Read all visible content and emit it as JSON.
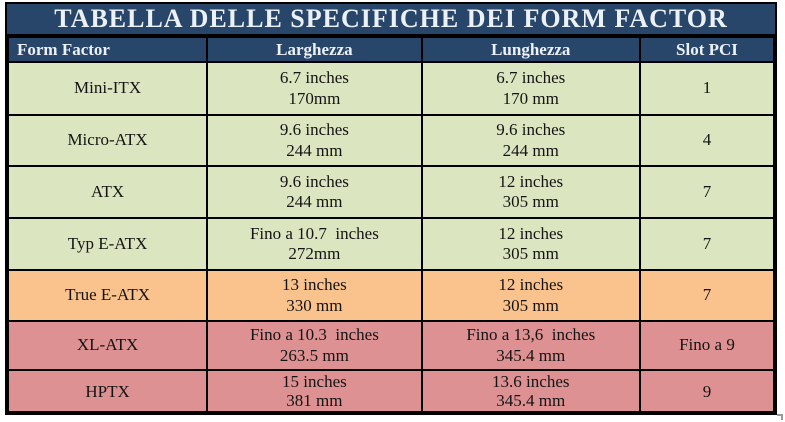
{
  "page": {
    "title_bar": "TABELLA DELLE SPECIFICHE DEI FORM FACTOR"
  },
  "table": {
    "columns": [
      "Form Factor",
      "Larghezza",
      "Lunghezza",
      "Slot PCI"
    ],
    "rows": [
      {
        "form_factor": "Mini-ITX",
        "larghezza": "6.7 inches\n170mm",
        "lunghezza": "6.7 inches\n170 mm",
        "slot_pci": "1",
        "color": "green"
      },
      {
        "form_factor": "Micro-ATX",
        "larghezza": "9.6 inches\n244 mm",
        "lunghezza": "9.6 inches\n244 mm",
        "slot_pci": "4",
        "color": "green"
      },
      {
        "form_factor": "ATX",
        "larghezza": "9.6 inches\n244 mm",
        "lunghezza": "12 inches\n305 mm",
        "slot_pci": "7",
        "color": "green"
      },
      {
        "form_factor": "Typ E-ATX",
        "larghezza": "Fino a 10.7  inches\n272mm",
        "lunghezza": "12 inches\n305 mm",
        "slot_pci": "7",
        "color": "green"
      },
      {
        "form_factor": "True E-ATX",
        "larghezza": "13 inches\n330 mm",
        "lunghezza": "12 inches\n305 mm",
        "slot_pci": "7",
        "color": "orange"
      },
      {
        "form_factor": "XL-ATX",
        "larghezza": "Fino a 10.3  inches\n263.5 mm",
        "lunghezza": "Fino a 13,6  inches\n345.4 mm",
        "slot_pci": "Fino a 9",
        "color": "red"
      },
      {
        "form_factor": "HPTX",
        "larghezza": "15 inches\n381 mm",
        "lunghezza": "13.6 inches\n345.4 mm",
        "slot_pci": "9",
        "color": "red"
      }
    ]
  },
  "colors": {
    "header_bg": "#284669",
    "header_text": "#ECF1F8",
    "green": "#DBE5C0",
    "orange": "#FAC28C",
    "red": "#DD9192",
    "border": "#000000",
    "cell_text": "#141414"
  }
}
